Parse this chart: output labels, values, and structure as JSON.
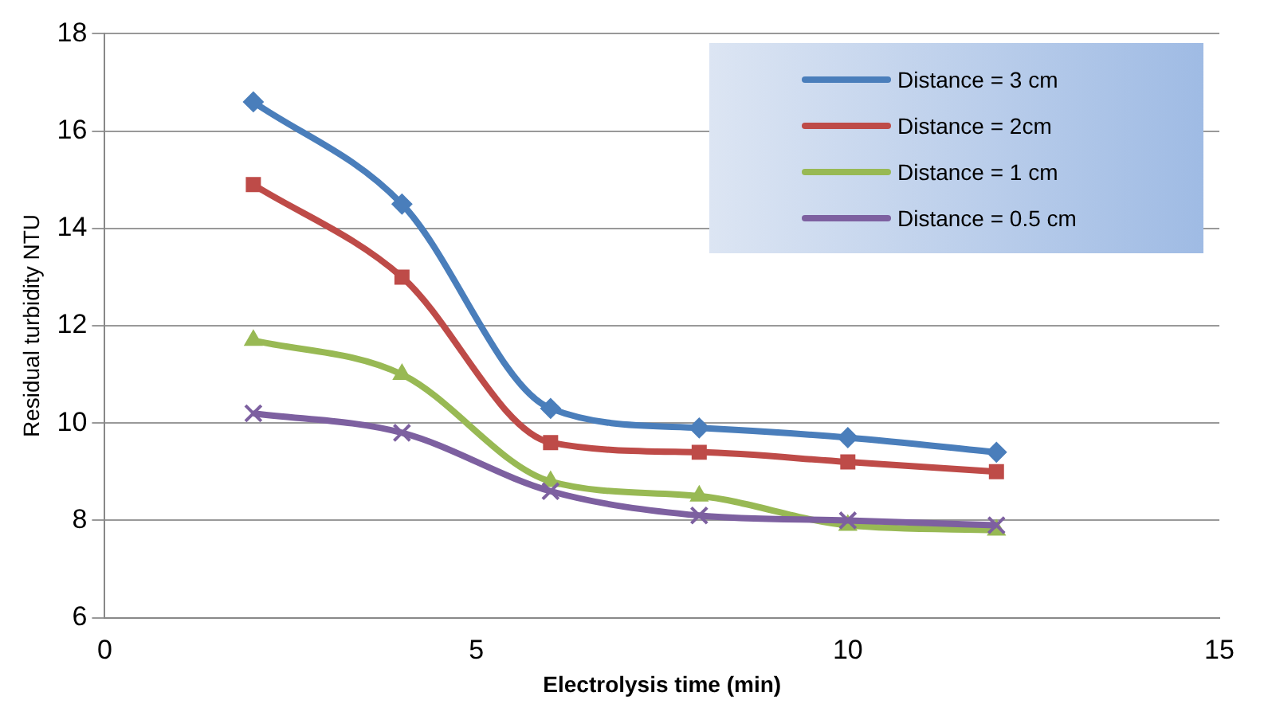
{
  "chart_data": {
    "type": "line",
    "xlabel": "Electrolysis time (min)",
    "ylabel": "Residual turbidity NTU",
    "x": [
      2,
      4,
      6,
      8,
      10,
      12
    ],
    "series": [
      {
        "name": "Distance = 3 cm",
        "color": "#4a7ebb",
        "marker": "diamond",
        "values": [
          16.6,
          14.5,
          10.3,
          9.9,
          9.7,
          9.4
        ]
      },
      {
        "name": "Distance = 2cm",
        "color": "#be4b48",
        "marker": "square",
        "values": [
          14.9,
          13.0,
          9.6,
          9.4,
          9.2,
          9.0
        ]
      },
      {
        "name": "Distance = 1 cm",
        "color": "#98b954",
        "marker": "triangle",
        "values": [
          11.7,
          11.0,
          8.8,
          8.5,
          7.9,
          7.8
        ]
      },
      {
        "name": "Distance = 0.5 cm",
        "color": "#7d60a0",
        "marker": "cross",
        "values": [
          10.2,
          9.8,
          8.6,
          8.1,
          8.0,
          7.9
        ]
      }
    ],
    "xlim": [
      0,
      15
    ],
    "xticks": [
      0,
      5,
      10,
      15
    ],
    "ylim": [
      6,
      18
    ],
    "yticks": [
      6,
      8,
      10,
      12,
      14,
      16,
      18
    ],
    "grid": "y",
    "legend": "top right"
  }
}
